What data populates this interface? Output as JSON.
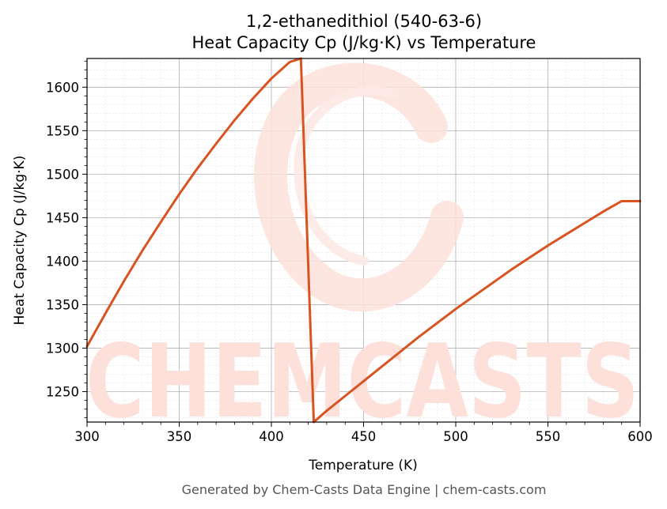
{
  "chart_data": {
    "type": "line",
    "title_line1": "1,2-ethanedithiol (540-63-6)",
    "title_line2": "Heat Capacity Cp (J/kg·K) vs Temperature",
    "xlabel": "Temperature (K)",
    "ylabel": "Heat Capacity Cp (J/kg·K)",
    "xlim": [
      300,
      600
    ],
    "ylim": [
      1215,
      1633
    ],
    "xticks": [
      300,
      350,
      400,
      450,
      500,
      550,
      600
    ],
    "yticks": [
      1250,
      1300,
      1350,
      1400,
      1450,
      1500,
      1550,
      1600
    ],
    "grid": true,
    "series": [
      {
        "color": "#d95321",
        "x": [
          300,
          310,
          320,
          330,
          340,
          350,
          360,
          370,
          380,
          390,
          400,
          410,
          416,
          423,
          430,
          440,
          450,
          460,
          470,
          480,
          490,
          500,
          510,
          520,
          530,
          540,
          550,
          560,
          570,
          580,
          590,
          600
        ],
        "y": [
          1302,
          1340,
          1377,
          1412,
          1445,
          1477,
          1507,
          1535,
          1562,
          1587,
          1610,
          1629,
          1633,
          1215,
          1228,
          1245,
          1262,
          1279,
          1296,
          1313,
          1329,
          1345,
          1360,
          1375,
          1390,
          1404,
          1418,
          1431,
          1444,
          1457,
          1469,
          1469
        ]
      }
    ]
  },
  "watermark": {
    "text": "CHEMCASTS",
    "color": "#fde0da"
  },
  "footer": "Generated by Chem-Casts Data Engine | chem-casts.com"
}
